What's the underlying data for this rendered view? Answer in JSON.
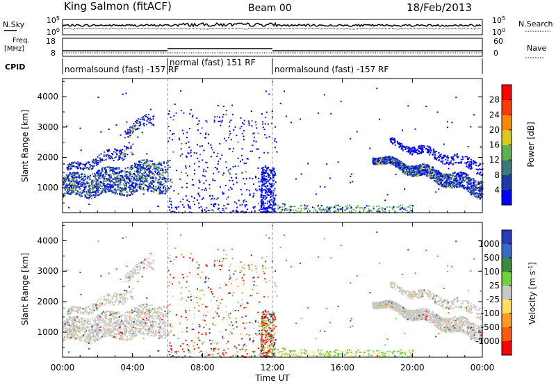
{
  "header": {
    "station": "King Salmon (fitACF)",
    "beam": "Beam 00",
    "date": "18/Feb/2013"
  },
  "strips": {
    "nsky_label": "N.Sky",
    "nsearch_label": "N.Search",
    "nsky_ticks": [
      "10^5",
      "10^0"
    ],
    "nsearch_ticks": [
      "10^5",
      "10^0"
    ],
    "freq_label": "Freq.",
    "freq_unit": "[MHz]",
    "freq_ticks": [
      "18",
      "8"
    ],
    "nave_label": "Nave",
    "nave_ticks": [
      "60",
      "0"
    ],
    "cpid_label": "CPID",
    "cpid_segments": [
      {
        "label": "normalsound (fast) -157 RF",
        "start_h": 0,
        "end_h": 6
      },
      {
        "label": "normal (fast) 151 RF",
        "start_h": 6,
        "end_h": 12
      },
      {
        "label": "normalsound (fast) -157 RF",
        "start_h": 12,
        "end_h": 24
      }
    ]
  },
  "colorbars": {
    "power": {
      "label": "Power [dB]",
      "ticks": [
        "28",
        "24",
        "20",
        "16",
        "12",
        "8",
        "4"
      ],
      "colors": [
        "#0000ff",
        "#1a3aa8",
        "#3c7a7a",
        "#60b050",
        "#d8c820",
        "#ff8800",
        "#ff3a00",
        "#ff0000"
      ]
    },
    "velocity": {
      "label": "Velocity [m s^-1]",
      "ticks": [
        "1000",
        "500",
        "100",
        "25",
        "-25",
        "-100",
        "-500",
        "-1000"
      ],
      "colors": [
        "#2a3db8",
        "#3a6ac8",
        "#3c8a3c",
        "#70d040",
        "#c8c8c8",
        "#ffe060",
        "#ff9a20",
        "#ff5a10",
        "#ff0000"
      ]
    }
  },
  "chart_data": [
    {
      "type": "heatmap",
      "title": "Power",
      "ylabel": "Slant Range [km]",
      "xlabel": "",
      "x_ticks": [
        "00:00",
        "04:00",
        "08:00",
        "12:00",
        "16:00",
        "20:00",
        "00:00"
      ],
      "y_ticks": [
        "1000",
        "2000",
        "3000",
        "4000"
      ],
      "xlim_hours": [
        0,
        24
      ],
      "ylim_km": [
        180,
        4600
      ],
      "scatter_bands": [
        {
          "t0": 0.0,
          "t1": 6.0,
          "r_lo0": 700,
          "r_hi0": 1400,
          "r_lo1": 900,
          "r_hi1": 2000,
          "level": "high"
        },
        {
          "t0": 0.2,
          "t1": 4.0,
          "r_lo0": 1500,
          "r_hi0": 1700,
          "r_lo1": 2100,
          "r_hi1": 2500,
          "level": "mid"
        },
        {
          "t0": 3.5,
          "t1": 5.2,
          "r_lo0": 2700,
          "r_hi0": 3000,
          "r_lo1": 3100,
          "r_hi1": 3500,
          "level": "mid"
        },
        {
          "t0": 17.7,
          "t1": 24.0,
          "r_lo0": 1900,
          "r_hi0": 2100,
          "r_lo1": 700,
          "r_hi1": 1300,
          "level": "high"
        },
        {
          "t0": 18.7,
          "t1": 24.0,
          "r_lo0": 2400,
          "r_hi0": 2600,
          "r_lo1": 1500,
          "r_hi1": 1900,
          "level": "low"
        }
      ]
    },
    {
      "type": "heatmap",
      "title": "Velocity",
      "ylabel": "Slant Range [km]",
      "xlabel": "Time UT",
      "x_ticks": [
        "00:00",
        "04:00",
        "08:00",
        "12:00",
        "16:00",
        "20:00",
        "00:00"
      ],
      "y_ticks": [
        "1000",
        "2000",
        "3000",
        "4000"
      ],
      "xlim_hours": [
        0,
        24
      ],
      "ylim_km": [
        180,
        4600
      ],
      "dominant_velocity": "-25 to 25 (ground scatter grey)"
    }
  ]
}
